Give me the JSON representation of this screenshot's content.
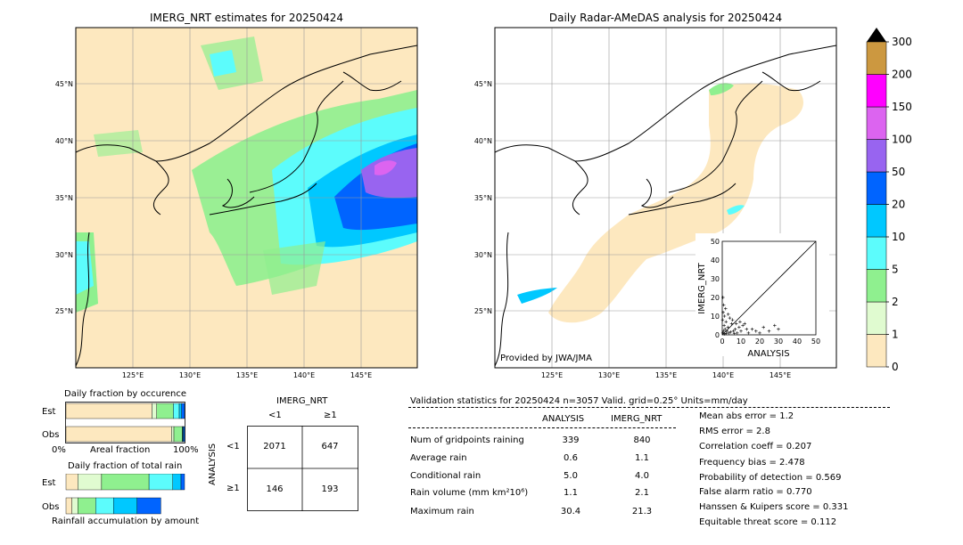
{
  "map_left": {
    "title": "IMERG_NRT estimates for 20250424",
    "lat_labels": [
      "45°N",
      "40°N",
      "35°N",
      "30°N",
      "25°N"
    ],
    "lon_labels": [
      "125°E",
      "130°E",
      "135°E",
      "140°E",
      "145°E"
    ]
  },
  "map_right": {
    "title": "Daily Radar-AMeDAS analysis for 20250424",
    "lat_labels": [
      "45°N",
      "40°N",
      "35°N",
      "30°N",
      "25°N"
    ],
    "lon_labels": [
      "125°E",
      "130°E",
      "135°E",
      "140°E",
      "145°E"
    ],
    "credit": "Provided by JWA/JMA"
  },
  "colorbar": {
    "labels": [
      "0",
      "1",
      "2",
      "5",
      "10",
      "20",
      "50",
      "100",
      "150",
      "200",
      "300"
    ],
    "colors": [
      "#fde8bf",
      "#e0fbd0",
      "#8ff08f",
      "#5cfcfc",
      "#00c8ff",
      "#0064ff",
      "#9864f0",
      "#dc64f0",
      "#ff00ff",
      "#cc9840",
      "#000000"
    ]
  },
  "scatter": {
    "xlabel": "ANALYSIS",
    "ylabel": "IMERG_NRT",
    "ticks": [
      "0",
      "10",
      "20",
      "30",
      "40",
      "50"
    ]
  },
  "chart_data": {
    "type": "scatter",
    "xlabel": "ANALYSIS",
    "ylabel": "IMERG_NRT",
    "xlim": [
      0,
      50
    ],
    "ylim": [
      0,
      50
    ],
    "points": [
      [
        0.2,
        8
      ],
      [
        0.5,
        12
      ],
      [
        0.8,
        16
      ],
      [
        1,
        5
      ],
      [
        1.2,
        10
      ],
      [
        1.5,
        3
      ],
      [
        2,
        7
      ],
      [
        2.5,
        2
      ],
      [
        3,
        4
      ],
      [
        3.5,
        1
      ],
      [
        4,
        9
      ],
      [
        5,
        6
      ],
      [
        6,
        2
      ],
      [
        7,
        3
      ],
      [
        8,
        1
      ],
      [
        9,
        4
      ],
      [
        10,
        2
      ],
      [
        12,
        6
      ],
      [
        14,
        1
      ],
      [
        16,
        3
      ],
      [
        18,
        2
      ],
      [
        20,
        1
      ],
      [
        22,
        4
      ],
      [
        25,
        2
      ],
      [
        28,
        5
      ],
      [
        30,
        3
      ],
      [
        0.3,
        1
      ],
      [
        0.6,
        2
      ],
      [
        1.1,
        0.5
      ],
      [
        2.2,
        0.8
      ],
      [
        4.5,
        1.5
      ],
      [
        6.5,
        0.7
      ],
      [
        11,
        5
      ],
      [
        13,
        3
      ],
      [
        0.4,
        20
      ],
      [
        1.8,
        14
      ],
      [
        3.2,
        11
      ],
      [
        5.5,
        8
      ],
      [
        7.5,
        6
      ],
      [
        9.5,
        7
      ]
    ]
  },
  "occurrence": {
    "title": "Daily fraction by occurence",
    "est_label": "Est",
    "obs_label": "Obs",
    "axis_left": "0%",
    "axis_mid": "Areal fraction",
    "axis_right": "100%",
    "est_fractions": [
      0.725,
      0.04,
      0.14,
      0.05,
      0.02,
      0.025
    ],
    "obs_fractions": [
      0.89,
      0.02,
      0.07,
      0.005,
      0.005,
      0.01
    ]
  },
  "total_rain": {
    "title": "Daily fraction of total rain",
    "est_label": "Est",
    "obs_label": "Obs",
    "caption": "Rainfall accumulation by amount",
    "est_fractions": [
      0.1,
      0.2,
      0.4,
      0.2,
      0.07,
      0.03
    ],
    "obs_fractions": [
      0.05,
      0.05,
      0.15,
      0.15,
      0.2,
      0.2
    ]
  },
  "contingency": {
    "title": "IMERG_NRT",
    "col_lt1": "<1",
    "col_ge1": "≥1",
    "row_axis": "ANALYSIS",
    "row_lt1": "<1",
    "row_ge1": "≥1",
    "a": "2071",
    "b": "647",
    "c": "146",
    "d": "193"
  },
  "validation": {
    "header": "Validation statistics for 20250424  n=3057 Valid. grid=0.25° Units=mm/day",
    "col_analysis": "ANALYSIS",
    "col_imerg": "IMERG_NRT",
    "rows": [
      {
        "label": "Num of gridpoints raining",
        "analysis": "339",
        "imerg": "840"
      },
      {
        "label": "Average rain",
        "analysis": "0.6",
        "imerg": "1.1"
      },
      {
        "label": "Conditional rain",
        "analysis": "5.0",
        "imerg": "4.0"
      },
      {
        "label": "Rain volume (mm km²10⁶)",
        "analysis": "1.1",
        "imerg": "2.1"
      },
      {
        "label": "Maximum rain",
        "analysis": "30.4",
        "imerg": "21.3"
      }
    ],
    "scores": [
      "Mean abs error =    1.2",
      "RMS error =    2.8",
      "Correlation coeff =  0.207",
      "Frequency bias =  2.478",
      "Probability of detection =  0.569",
      "False alarm ratio =  0.770",
      "Hanssen & Kuipers score =  0.331",
      "Equitable threat score =  0.112"
    ]
  }
}
